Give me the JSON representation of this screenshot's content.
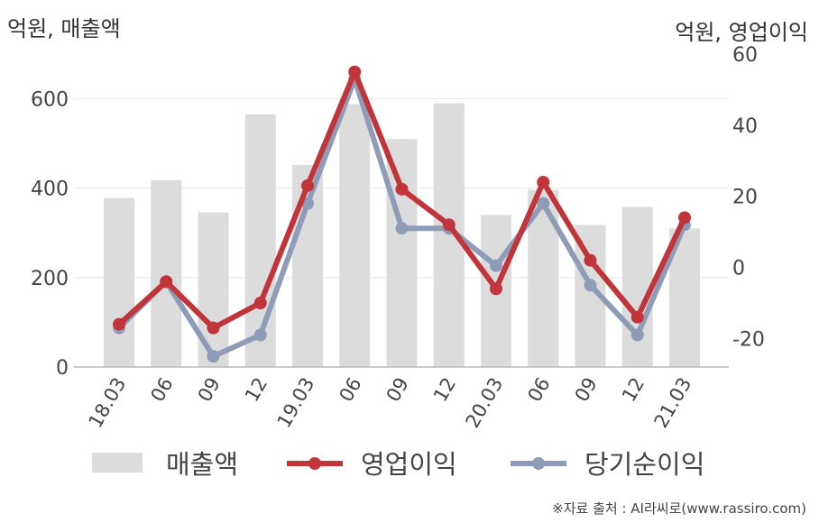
{
  "chart_data": {
    "type": "bar",
    "categories": [
      "18.03",
      "06",
      "09",
      "12",
      "19.03",
      "06",
      "09",
      "12",
      "20.03",
      "06",
      "09",
      "12",
      "21.03"
    ],
    "left_axis_unit": "억원, 매출액",
    "right_axis_unit": "억원, 영업이익",
    "ylim_left": [
      0,
      700
    ],
    "yticks_left": [
      0,
      200,
      400,
      600
    ],
    "ylim_right": [
      -28,
      60
    ],
    "yticks_right": [
      -20,
      0,
      20,
      40,
      60
    ],
    "grid": true,
    "legend_position": "bottom",
    "series": [
      {
        "name": "매출액",
        "kind": "bar",
        "axis": "left",
        "color": "#dcdcdc",
        "values": [
          378,
          418,
          346,
          565,
          452,
          588,
          510,
          590,
          340,
          396,
          318,
          358,
          310
        ]
      },
      {
        "name": "영업이익",
        "kind": "line",
        "axis": "right",
        "color": "#c0343a",
        "values": [
          -16,
          -4,
          -17,
          -10,
          23,
          55,
          22,
          12,
          -6,
          24,
          2,
          -14,
          14
        ]
      },
      {
        "name": "당기순이익",
        "kind": "line",
        "axis": "right",
        "color": "#8f9cb8",
        "values": [
          -17,
          -4,
          -25,
          -19,
          18,
          53,
          11,
          11,
          0.5,
          18,
          -5,
          -19,
          12
        ]
      }
    ]
  },
  "source_text": "※자료 출처 : AI라씨로(www.rassiro.com)"
}
